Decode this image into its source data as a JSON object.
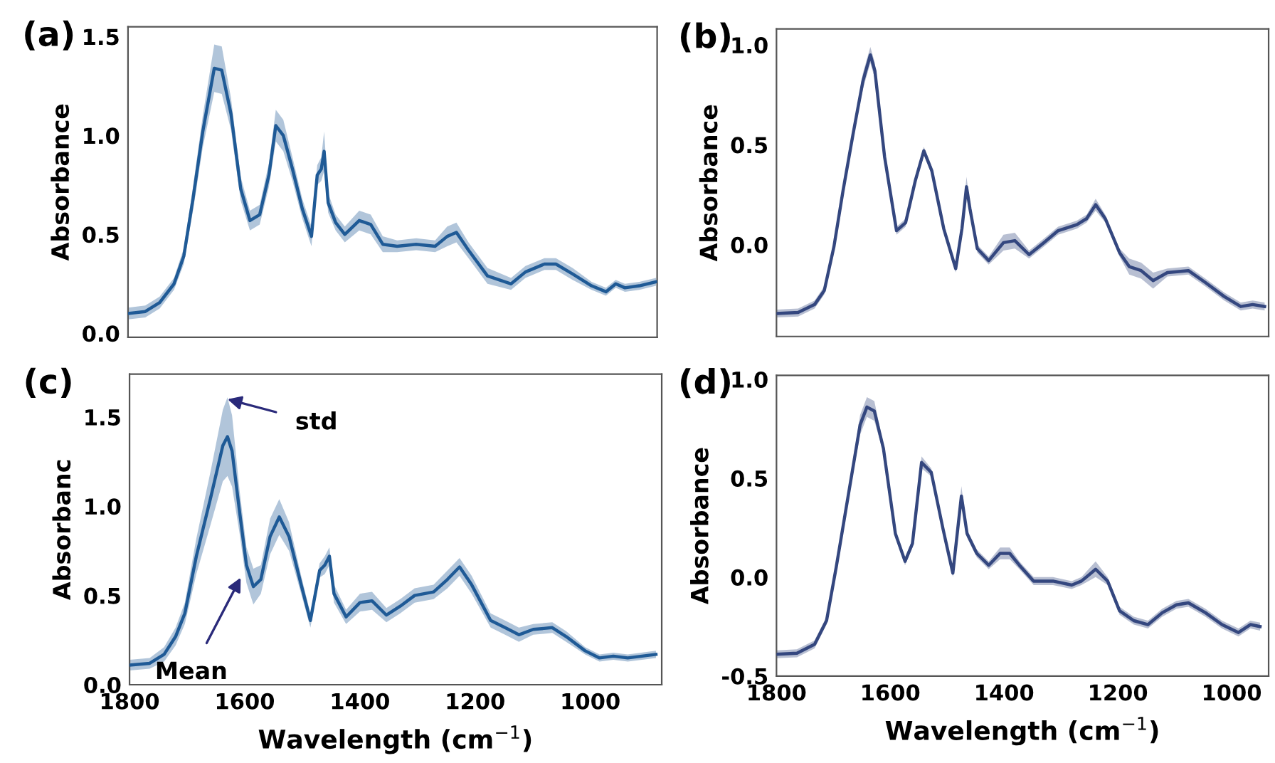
{
  "chart_data": [
    {
      "type": "line",
      "title": "(a)",
      "ylabel": "Absorbance",
      "xlim": [
        1800,
        880
      ],
      "ylim": [
        -0.02,
        1.55
      ],
      "xticks": [
        1800,
        1600,
        1400,
        1200,
        1000
      ],
      "yticks": [
        {
          "value": 0,
          "label": "0.0"
        },
        {
          "value": 0.5,
          "label": "0.5"
        },
        {
          "value": 1,
          "label": "1.0"
        },
        {
          "value": 1.5,
          "label": "1.5"
        }
      ],
      "tick_labels": "y",
      "x": [
        1800,
        1770,
        1745,
        1720,
        1703,
        1687,
        1670,
        1650,
        1637,
        1621,
        1604,
        1588,
        1571,
        1555,
        1543,
        1530,
        1514,
        1497,
        1481,
        1471,
        1464,
        1459,
        1452,
        1439,
        1423,
        1398,
        1378,
        1357,
        1332,
        1299,
        1266,
        1245,
        1229,
        1208,
        1175,
        1134,
        1109,
        1076,
        1056,
        1027,
        994,
        969,
        952,
        936,
        911,
        882
      ],
      "series": [
        {
          "color": "#1f5a96",
          "values": [
            0.1,
            0.11,
            0.155,
            0.25,
            0.39,
            0.68,
            1.02,
            1.34,
            1.33,
            1.11,
            0.73,
            0.57,
            0.6,
            0.8,
            1.05,
            1.0,
            0.83,
            0.63,
            0.49,
            0.8,
            0.83,
            0.92,
            0.66,
            0.56,
            0.5,
            0.57,
            0.55,
            0.45,
            0.44,
            0.45,
            0.44,
            0.49,
            0.51,
            0.42,
            0.29,
            0.25,
            0.31,
            0.35,
            0.35,
            0.3,
            0.24,
            0.21,
            0.25,
            0.23,
            0.24,
            0.26
          ],
          "lower": [
            0.07,
            0.08,
            0.125,
            0.22,
            0.35,
            0.62,
            0.94,
            1.22,
            1.21,
            1.03,
            0.67,
            0.52,
            0.55,
            0.74,
            0.97,
            0.92,
            0.77,
            0.58,
            0.44,
            0.75,
            0.77,
            0.82,
            0.61,
            0.52,
            0.46,
            0.52,
            0.5,
            0.41,
            0.41,
            0.42,
            0.41,
            0.44,
            0.46,
            0.38,
            0.25,
            0.22,
            0.28,
            0.32,
            0.32,
            0.27,
            0.22,
            0.19,
            0.23,
            0.21,
            0.22,
            0.24
          ],
          "upper": [
            0.13,
            0.14,
            0.185,
            0.28,
            0.43,
            0.74,
            1.1,
            1.46,
            1.45,
            1.19,
            0.79,
            0.62,
            0.65,
            0.86,
            1.13,
            1.08,
            0.89,
            0.68,
            0.54,
            0.85,
            0.89,
            1.02,
            0.71,
            0.6,
            0.54,
            0.62,
            0.6,
            0.49,
            0.47,
            0.48,
            0.47,
            0.54,
            0.56,
            0.46,
            0.33,
            0.28,
            0.34,
            0.38,
            0.38,
            0.33,
            0.26,
            0.23,
            0.27,
            0.25,
            0.26,
            0.28
          ]
        }
      ]
    },
    {
      "type": "line",
      "title": "(b)",
      "ylabel": "Absorbance",
      "xlim": [
        1800,
        935
      ],
      "ylim": [
        -0.46,
        1.08
      ],
      "xticks": [
        1800,
        1600,
        1400,
        1200,
        1000
      ],
      "yticks": [
        {
          "value": 0,
          "label": "0.0"
        },
        {
          "value": 0.5,
          "label": "0.5"
        },
        {
          "value": 1,
          "label": "1.0"
        }
      ],
      "tick_labels": "y",
      "x": [
        1800,
        1762,
        1733,
        1716,
        1699,
        1683,
        1665,
        1648,
        1635,
        1627,
        1610,
        1589,
        1573,
        1556,
        1541,
        1527,
        1506,
        1485,
        1474,
        1466,
        1460,
        1447,
        1427,
        1401,
        1381,
        1356,
        1330,
        1305,
        1272,
        1255,
        1239,
        1222,
        1197,
        1180,
        1159,
        1138,
        1113,
        1076,
        1046,
        1013,
        984,
        963,
        942
      ],
      "series": [
        {
          "color": "#34477f",
          "values": [
            -0.345,
            -0.34,
            -0.3,
            -0.23,
            -0.01,
            0.27,
            0.56,
            0.82,
            0.95,
            0.87,
            0.44,
            0.07,
            0.11,
            0.32,
            0.47,
            0.37,
            0.08,
            -0.12,
            0.08,
            0.29,
            0.18,
            -0.02,
            -0.08,
            0.01,
            0.02,
            -0.05,
            0.01,
            0.07,
            0.1,
            0.13,
            0.2,
            0.13,
            -0.04,
            -0.11,
            -0.13,
            -0.18,
            -0.14,
            -0.13,
            -0.19,
            -0.26,
            -0.31,
            -0.3,
            -0.31
          ],
          "lower": [
            -0.365,
            -0.36,
            -0.32,
            -0.25,
            -0.03,
            0.25,
            0.54,
            0.78,
            0.91,
            0.83,
            0.42,
            0.05,
            0.09,
            0.3,
            0.45,
            0.35,
            0.06,
            -0.14,
            0.06,
            0.24,
            0.16,
            -0.04,
            -0.1,
            -0.03,
            -0.02,
            -0.07,
            -0.01,
            0.05,
            0.08,
            0.11,
            0.17,
            0.11,
            -0.06,
            -0.15,
            -0.17,
            -0.22,
            -0.16,
            -0.15,
            -0.21,
            -0.28,
            -0.33,
            -0.32,
            -0.33
          ],
          "upper": [
            -0.325,
            -0.32,
            -0.28,
            -0.21,
            0.01,
            0.29,
            0.58,
            0.86,
            0.99,
            0.91,
            0.46,
            0.09,
            0.13,
            0.34,
            0.49,
            0.39,
            0.1,
            -0.1,
            0.1,
            0.34,
            0.2,
            0.0,
            -0.06,
            0.05,
            0.06,
            -0.03,
            0.03,
            0.09,
            0.12,
            0.15,
            0.23,
            0.15,
            -0.02,
            -0.07,
            -0.09,
            -0.14,
            -0.12,
            -0.11,
            -0.17,
            -0.24,
            -0.29,
            -0.28,
            -0.29
          ]
        }
      ]
    },
    {
      "type": "line",
      "title": "(c)",
      "ylabel": "Absorbanc",
      "xlabel": "Wavelength (cm$^{−1}$)",
      "xlim": [
        1800,
        876
      ],
      "ylim": [
        0,
        1.74
      ],
      "xticks": [
        1800,
        1600,
        1400,
        1200,
        1000
      ],
      "yticks": [
        {
          "value": 0,
          "label": "0.0"
        },
        {
          "value": 0.5,
          "label": "0.5"
        },
        {
          "value": 1,
          "label": "1.0"
        },
        {
          "value": 1.5,
          "label": "1.5"
        }
      ],
      "annotations": [
        {
          "text": "std",
          "x": 1630,
          "y": 1.6
        },
        {
          "text": "Mean",
          "x": 1607,
          "y": 0.6
        }
      ],
      "x": [
        1800,
        1765,
        1740,
        1720,
        1704,
        1684,
        1659,
        1638,
        1630,
        1622,
        1609,
        1597,
        1585,
        1572,
        1556,
        1540,
        1523,
        1502,
        1486,
        1470,
        1461,
        1453,
        1445,
        1424,
        1400,
        1379,
        1354,
        1330,
        1305,
        1272,
        1248,
        1227,
        1206,
        1173,
        1148,
        1124,
        1099,
        1066,
        1042,
        1009,
        984,
        960,
        935,
        886
      ],
      "series": [
        {
          "color": "#1f5a96",
          "values": [
            0.11,
            0.12,
            0.17,
            0.27,
            0.4,
            0.72,
            1.05,
            1.34,
            1.39,
            1.31,
            0.97,
            0.67,
            0.55,
            0.59,
            0.83,
            0.94,
            0.83,
            0.56,
            0.36,
            0.64,
            0.67,
            0.72,
            0.51,
            0.38,
            0.46,
            0.47,
            0.39,
            0.44,
            0.5,
            0.52,
            0.59,
            0.66,
            0.56,
            0.36,
            0.32,
            0.28,
            0.31,
            0.32,
            0.27,
            0.19,
            0.15,
            0.16,
            0.15,
            0.17
          ],
          "lower": [
            0.08,
            0.09,
            0.13,
            0.22,
            0.34,
            0.62,
            0.9,
            1.14,
            1.17,
            1.11,
            0.85,
            0.57,
            0.45,
            0.51,
            0.73,
            0.84,
            0.75,
            0.51,
            0.32,
            0.6,
            0.62,
            0.67,
            0.46,
            0.34,
            0.41,
            0.42,
            0.35,
            0.4,
            0.46,
            0.48,
            0.54,
            0.61,
            0.51,
            0.32,
            0.28,
            0.24,
            0.28,
            0.29,
            0.24,
            0.17,
            0.13,
            0.14,
            0.13,
            0.15
          ],
          "upper": [
            0.14,
            0.15,
            0.21,
            0.32,
            0.46,
            0.82,
            1.2,
            1.54,
            1.61,
            1.51,
            1.09,
            0.77,
            0.65,
            0.67,
            0.93,
            1.04,
            0.91,
            0.61,
            0.4,
            0.68,
            0.72,
            0.77,
            0.56,
            0.42,
            0.51,
            0.52,
            0.43,
            0.48,
            0.54,
            0.56,
            0.64,
            0.71,
            0.61,
            0.4,
            0.36,
            0.32,
            0.34,
            0.35,
            0.3,
            0.21,
            0.17,
            0.18,
            0.17,
            0.19
          ]
        }
      ]
    },
    {
      "type": "line",
      "title": "(d)",
      "ylabel": "Absorbance",
      "xlabel": "Wavelength (cm$^{−1}$)",
      "xlim": [
        1800,
        935
      ],
      "ylim": [
        -0.5,
        1.02
      ],
      "xticks": [
        1800,
        1600,
        1400,
        1200,
        1000
      ],
      "yticks": [
        {
          "value": -0.5,
          "label": "-0.5"
        },
        {
          "value": 0,
          "label": "0.0"
        },
        {
          "value": 0.5,
          "label": "0.5"
        },
        {
          "value": 1,
          "label": "1.0"
        }
      ],
      "x": [
        1800,
        1764,
        1733,
        1712,
        1695,
        1674,
        1653,
        1641,
        1628,
        1612,
        1591,
        1574,
        1561,
        1545,
        1528,
        1507,
        1490,
        1475,
        1465,
        1448,
        1427,
        1407,
        1390,
        1373,
        1348,
        1314,
        1281,
        1264,
        1239,
        1218,
        1197,
        1172,
        1147,
        1122,
        1097,
        1076,
        1046,
        1017,
        988,
        967,
        950
      ],
      "series": [
        {
          "color": "#34477f",
          "values": [
            -0.39,
            -0.385,
            -0.34,
            -0.22,
            0.05,
            0.41,
            0.77,
            0.86,
            0.84,
            0.65,
            0.22,
            0.08,
            0.17,
            0.58,
            0.53,
            0.24,
            0.02,
            0.41,
            0.22,
            0.12,
            0.06,
            0.12,
            0.12,
            0.06,
            -0.02,
            -0.02,
            -0.04,
            -0.02,
            0.04,
            -0.02,
            -0.17,
            -0.22,
            -0.24,
            -0.18,
            -0.14,
            -0.13,
            -0.18,
            -0.24,
            -0.28,
            -0.24,
            -0.25
          ],
          "lower": [
            -0.41,
            -0.405,
            -0.36,
            -0.24,
            0.03,
            0.39,
            0.72,
            0.81,
            0.79,
            0.63,
            0.2,
            0.06,
            0.15,
            0.55,
            0.51,
            0.22,
            0.0,
            0.36,
            0.2,
            0.1,
            0.04,
            0.09,
            0.09,
            0.04,
            -0.04,
            -0.04,
            -0.06,
            -0.04,
            0.0,
            -0.04,
            -0.19,
            -0.24,
            -0.26,
            -0.2,
            -0.16,
            -0.15,
            -0.2,
            -0.26,
            -0.3,
            -0.26,
            -0.27
          ],
          "upper": [
            -0.37,
            -0.365,
            -0.32,
            -0.2,
            0.07,
            0.43,
            0.82,
            0.91,
            0.89,
            0.67,
            0.24,
            0.1,
            0.19,
            0.61,
            0.55,
            0.26,
            0.04,
            0.46,
            0.24,
            0.14,
            0.08,
            0.15,
            0.15,
            0.08,
            0.0,
            0.0,
            -0.02,
            0.0,
            0.08,
            0.0,
            -0.15,
            -0.2,
            -0.22,
            -0.16,
            -0.12,
            -0.11,
            -0.16,
            -0.22,
            -0.26,
            -0.22,
            -0.23
          ]
        }
      ]
    }
  ]
}
